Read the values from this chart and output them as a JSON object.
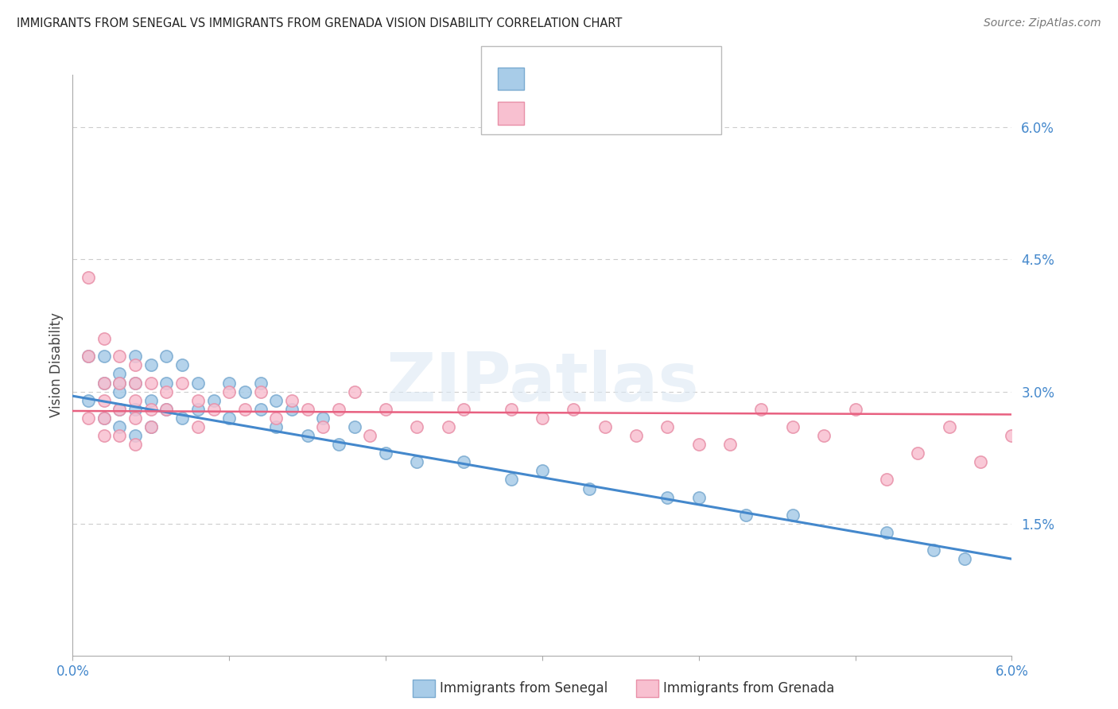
{
  "title": "IMMIGRANTS FROM SENEGAL VS IMMIGRANTS FROM GRENADA VISION DISABILITY CORRELATION CHART",
  "source": "Source: ZipAtlas.com",
  "ylabel": "Vision Disability",
  "watermark": "ZIPatlas",
  "ytick_values": [
    0.015,
    0.03,
    0.045,
    0.06
  ],
  "ytick_labels": [
    "1.5%",
    "3.0%",
    "4.5%",
    "6.0%"
  ],
  "xlim": [
    0.0,
    0.06
  ],
  "ylim": [
    0.0,
    0.066
  ],
  "blue_scatter_x": [
    0.001,
    0.001,
    0.002,
    0.002,
    0.002,
    0.003,
    0.003,
    0.003,
    0.003,
    0.003,
    0.004,
    0.004,
    0.004,
    0.004,
    0.005,
    0.005,
    0.005,
    0.006,
    0.006,
    0.006,
    0.007,
    0.007,
    0.008,
    0.008,
    0.009,
    0.01,
    0.01,
    0.011,
    0.012,
    0.012,
    0.013,
    0.013,
    0.014,
    0.015,
    0.016,
    0.017,
    0.018,
    0.02,
    0.022,
    0.025,
    0.028,
    0.03,
    0.033,
    0.038,
    0.04,
    0.043,
    0.046,
    0.052,
    0.055,
    0.057
  ],
  "blue_scatter_y": [
    0.034,
    0.029,
    0.034,
    0.031,
    0.027,
    0.032,
    0.031,
    0.028,
    0.026,
    0.03,
    0.034,
    0.031,
    0.028,
    0.025,
    0.033,
    0.029,
    0.026,
    0.034,
    0.031,
    0.028,
    0.033,
    0.027,
    0.031,
    0.028,
    0.029,
    0.031,
    0.027,
    0.03,
    0.028,
    0.031,
    0.029,
    0.026,
    0.028,
    0.025,
    0.027,
    0.024,
    0.026,
    0.023,
    0.022,
    0.022,
    0.02,
    0.021,
    0.019,
    0.018,
    0.018,
    0.016,
    0.016,
    0.014,
    0.012,
    0.011
  ],
  "pink_scatter_x": [
    0.001,
    0.001,
    0.001,
    0.002,
    0.002,
    0.002,
    0.002,
    0.002,
    0.003,
    0.003,
    0.003,
    0.003,
    0.004,
    0.004,
    0.004,
    0.004,
    0.004,
    0.005,
    0.005,
    0.005,
    0.006,
    0.006,
    0.007,
    0.008,
    0.008,
    0.009,
    0.01,
    0.011,
    0.012,
    0.013,
    0.014,
    0.015,
    0.016,
    0.017,
    0.018,
    0.019,
    0.02,
    0.022,
    0.024,
    0.025,
    0.028,
    0.03,
    0.032,
    0.034,
    0.036,
    0.038,
    0.04,
    0.042,
    0.044,
    0.046,
    0.048,
    0.05,
    0.052,
    0.054,
    0.056,
    0.058,
    0.06
  ],
  "pink_scatter_y": [
    0.043,
    0.034,
    0.027,
    0.036,
    0.031,
    0.029,
    0.027,
    0.025,
    0.034,
    0.031,
    0.028,
    0.025,
    0.033,
    0.031,
    0.029,
    0.027,
    0.024,
    0.031,
    0.028,
    0.026,
    0.03,
    0.028,
    0.031,
    0.029,
    0.026,
    0.028,
    0.03,
    0.028,
    0.03,
    0.027,
    0.029,
    0.028,
    0.026,
    0.028,
    0.03,
    0.025,
    0.028,
    0.026,
    0.026,
    0.028,
    0.028,
    0.027,
    0.028,
    0.026,
    0.025,
    0.026,
    0.024,
    0.024,
    0.028,
    0.026,
    0.025,
    0.028,
    0.02,
    0.023,
    0.026,
    0.022,
    0.025
  ],
  "blue_line_x": [
    0.0,
    0.06
  ],
  "blue_line_y": [
    0.0295,
    0.011
  ],
  "pink_line_x": [
    0.0,
    0.06
  ],
  "pink_line_y": [
    0.0278,
    0.0274
  ],
  "scatter_size": 120,
  "blue_color": "#a8cce8",
  "blue_edge_color": "#7aaad0",
  "pink_color": "#f8c0d0",
  "pink_edge_color": "#e890a8",
  "blue_line_color": "#4488cc",
  "pink_line_color": "#e86080",
  "grid_color": "#cccccc",
  "title_color": "#222222",
  "source_color": "#777777",
  "axis_label_color": "#4488cc",
  "tick_color": "#4488cc",
  "background_color": "#ffffff"
}
